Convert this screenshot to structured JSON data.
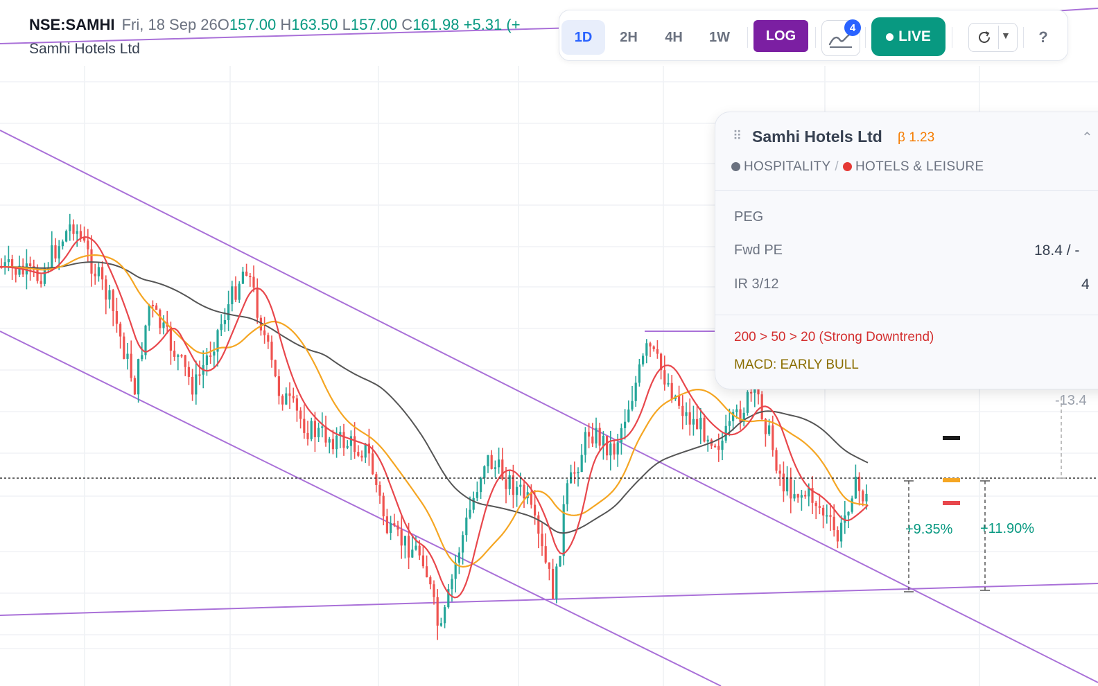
{
  "header": {
    "symbol": "NSE:SAMHI",
    "date": "Fri, 18 Sep 26",
    "open_label": "O",
    "open": "157.00",
    "high_label": "H",
    "high": "163.50",
    "low_label": "L",
    "low": "157.00",
    "close_label": "C",
    "close": "161.98",
    "change": "+5.31 (+",
    "company": "Samhi Hotels Ltd"
  },
  "toolbar": {
    "timeframes": [
      "1D",
      "2H",
      "4H",
      "1W"
    ],
    "active_timeframe": "1D",
    "log_label": "LOG",
    "indicator_count": "4",
    "live_label": "LIVE",
    "help_label": "?",
    "icons": [
      "indicators-icon",
      "refresh-icon",
      "chevron-down-icon"
    ]
  },
  "info_panel": {
    "name": "Samhi Hotels Ltd",
    "beta": "β 1.23",
    "sector": "HOSPITALITY",
    "industry": "HOTELS & LEISURE",
    "sector_dot_color": "#6b7280",
    "industry_dot_color": "#e53935",
    "rows": [
      {
        "label": "PEG",
        "value": ""
      },
      {
        "label": "Fwd PE",
        "value": "18.4 / -"
      },
      {
        "label": "IR 3/12",
        "value": "4"
      }
    ],
    "trend": "200 > 50 > 20 (Strong Downtrend)",
    "macd": "MACD: EARLY BULL"
  },
  "measurements": {
    "left_pct": "+9.35%",
    "right_pct": "+11.90%",
    "side_pct": "-13.4"
  },
  "colors": {
    "up": "#26a69a",
    "down": "#ef5350",
    "ema20": "#e8474c",
    "ema50": "#f5a623",
    "ema200": "#555555",
    "trendline": "#a970d8",
    "log_active": "#7b1fa2",
    "live": "#089981"
  },
  "chart_data": {
    "type": "line",
    "title": "",
    "xlabel": "",
    "ylabel": "",
    "scale": "log",
    "grid": true,
    "legend": "none",
    "series": [],
    "note": ""
  }
}
